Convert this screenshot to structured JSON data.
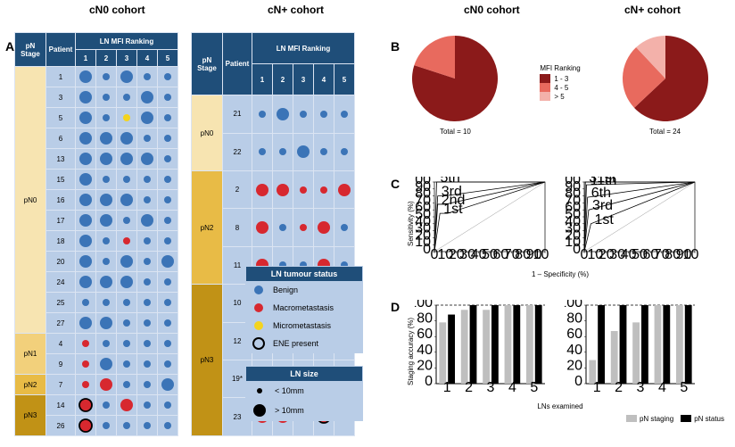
{
  "cohorts": {
    "left": "cN0 cohort",
    "mid": "cN+ cohort",
    "B_left": "cN0 cohort",
    "B_right": "cN+ cohort"
  },
  "panels": {
    "A": "A",
    "B": "B",
    "C": "C",
    "D": "D"
  },
  "tableHeaders": {
    "stage": "pN Stage",
    "patient": "Patient",
    "ranking": "LN MFI Ranking",
    "cols": [
      "1",
      "2",
      "3",
      "4",
      "5"
    ]
  },
  "colors": {
    "benign": "#3b74b7",
    "macro": "#d7282f",
    "micro": "#f4d41f",
    "ene_stroke": "#000000",
    "cell_bg": "#b9cde7",
    "header_bg": "#1f4e79",
    "stage_pN0": "#f7e4b1",
    "stage_pN1": "#f2d07b",
    "stage_pN2": "#e8bb46",
    "stage_pN3": "#c19216",
    "pie1": "#8b1a1a",
    "pie2": "#e86a5e",
    "pie3": "#f3b1aa",
    "barA": "#bfbfbf",
    "barB": "#000000",
    "text": "#000000"
  },
  "sizes": {
    "smallDot": 4,
    "bigDot": 7,
    "eneStroke": 1.8,
    "cellPx": 22
  },
  "cN0_table": [
    {
      "stage": "pN0",
      "patient": "1",
      "dots": [
        {
          "c": "b",
          "s": "L"
        },
        {
          "c": "b",
          "s": "S"
        },
        {
          "c": "b",
          "s": "L"
        },
        {
          "c": "b",
          "s": "S"
        },
        {
          "c": "b",
          "s": "S"
        }
      ]
    },
    {
      "stage": "pN0",
      "patient": "3",
      "dots": [
        {
          "c": "b",
          "s": "L"
        },
        {
          "c": "b",
          "s": "S"
        },
        {
          "c": "b",
          "s": "S"
        },
        {
          "c": "b",
          "s": "L"
        },
        {
          "c": "b",
          "s": "S"
        }
      ]
    },
    {
      "stage": "pN0",
      "patient": "5",
      "dots": [
        {
          "c": "b",
          "s": "L"
        },
        {
          "c": "b",
          "s": "S"
        },
        {
          "c": "y",
          "s": "S"
        },
        {
          "c": "b",
          "s": "L"
        },
        {
          "c": "b",
          "s": "S"
        }
      ]
    },
    {
      "stage": "pN0",
      "patient": "6",
      "dots": [
        {
          "c": "b",
          "s": "L"
        },
        {
          "c": "b",
          "s": "L"
        },
        {
          "c": "b",
          "s": "L"
        },
        {
          "c": "b",
          "s": "S"
        },
        {
          "c": "b",
          "s": "S"
        }
      ]
    },
    {
      "stage": "pN0",
      "patient": "13",
      "dots": [
        {
          "c": "b",
          "s": "L"
        },
        {
          "c": "b",
          "s": "L"
        },
        {
          "c": "b",
          "s": "L"
        },
        {
          "c": "b",
          "s": "L"
        },
        {
          "c": "b",
          "s": "S"
        }
      ]
    },
    {
      "stage": "pN0",
      "patient": "15",
      "dots": [
        {
          "c": "b",
          "s": "L"
        },
        {
          "c": "b",
          "s": "S"
        },
        {
          "c": "b",
          "s": "S"
        },
        {
          "c": "b",
          "s": "S"
        },
        {
          "c": "b",
          "s": "S"
        }
      ]
    },
    {
      "stage": "pN0",
      "patient": "16",
      "dots": [
        {
          "c": "b",
          "s": "L"
        },
        {
          "c": "b",
          "s": "L"
        },
        {
          "c": "b",
          "s": "L"
        },
        {
          "c": "b",
          "s": "S"
        },
        {
          "c": "b",
          "s": "S"
        }
      ]
    },
    {
      "stage": "pN0",
      "patient": "17",
      "dots": [
        {
          "c": "b",
          "s": "L"
        },
        {
          "c": "b",
          "s": "L"
        },
        {
          "c": "b",
          "s": "S"
        },
        {
          "c": "b",
          "s": "L"
        },
        {
          "c": "b",
          "s": "S"
        }
      ]
    },
    {
      "stage": "pN0",
      "patient": "18",
      "dots": [
        {
          "c": "b",
          "s": "L"
        },
        {
          "c": "b",
          "s": "S"
        },
        {
          "c": "r",
          "s": "S"
        },
        {
          "c": "b",
          "s": "S"
        },
        {
          "c": "b",
          "s": "S"
        }
      ]
    },
    {
      "stage": "pN0",
      "patient": "20",
      "dots": [
        {
          "c": "b",
          "s": "L"
        },
        {
          "c": "b",
          "s": "S"
        },
        {
          "c": "b",
          "s": "L"
        },
        {
          "c": "b",
          "s": "S"
        },
        {
          "c": "b",
          "s": "L"
        }
      ]
    },
    {
      "stage": "pN0",
      "patient": "24",
      "dots": [
        {
          "c": "b",
          "s": "L"
        },
        {
          "c": "b",
          "s": "L"
        },
        {
          "c": "b",
          "s": "L"
        },
        {
          "c": "b",
          "s": "S"
        },
        {
          "c": "b",
          "s": "S"
        }
      ]
    },
    {
      "stage": "pN0",
      "patient": "25",
      "dots": [
        {
          "c": "b",
          "s": "S"
        },
        {
          "c": "b",
          "s": "S"
        },
        {
          "c": "b",
          "s": "S"
        },
        {
          "c": "b",
          "s": "S"
        },
        {
          "c": "b",
          "s": "S"
        }
      ]
    },
    {
      "stage": "pN0",
      "patient": "27",
      "dots": [
        {
          "c": "b",
          "s": "L"
        },
        {
          "c": "b",
          "s": "L"
        },
        {
          "c": "b",
          "s": "S"
        },
        {
          "c": "b",
          "s": "S"
        },
        {
          "c": "b",
          "s": "S"
        }
      ]
    },
    {
      "stage": "pN1",
      "patient": "4",
      "dots": [
        {
          "c": "r",
          "s": "S"
        },
        {
          "c": "b",
          "s": "S"
        },
        {
          "c": "b",
          "s": "S"
        },
        {
          "c": "b",
          "s": "S"
        },
        {
          "c": "b",
          "s": "S"
        }
      ]
    },
    {
      "stage": "pN1",
      "patient": "9",
      "dots": [
        {
          "c": "r",
          "s": "S"
        },
        {
          "c": "b",
          "s": "L"
        },
        {
          "c": "b",
          "s": "S"
        },
        {
          "c": "b",
          "s": "S"
        },
        {
          "c": "b",
          "s": "S"
        }
      ]
    },
    {
      "stage": "pN2",
      "patient": "7",
      "dots": [
        {
          "c": "r",
          "s": "S"
        },
        {
          "c": "r",
          "s": "L"
        },
        {
          "c": "b",
          "s": "S"
        },
        {
          "c": "b",
          "s": "S"
        },
        {
          "c": "b",
          "s": "L"
        }
      ]
    },
    {
      "stage": "pN3",
      "patient": "14",
      "dots": [
        {
          "c": "r",
          "s": "L",
          "ene": true
        },
        {
          "c": "b",
          "s": "S"
        },
        {
          "c": "r",
          "s": "L"
        },
        {
          "c": "b",
          "s": "S"
        },
        {
          "c": "b",
          "s": "S"
        }
      ]
    },
    {
      "stage": "pN3",
      "patient": "26",
      "dots": [
        {
          "c": "r",
          "s": "L",
          "ene": true
        },
        {
          "c": "b",
          "s": "S"
        },
        {
          "c": "b",
          "s": "S"
        },
        {
          "c": "b",
          "s": "S"
        },
        {
          "c": "b",
          "s": "S"
        }
      ]
    }
  ],
  "cNplus_table": [
    {
      "stage": "pN0",
      "patient": "21",
      "dots": [
        {
          "c": "b",
          "s": "S"
        },
        {
          "c": "b",
          "s": "L"
        },
        {
          "c": "b",
          "s": "S"
        },
        {
          "c": "b",
          "s": "S"
        },
        {
          "c": "b",
          "s": "S"
        }
      ]
    },
    {
      "stage": "pN0",
      "patient": "22",
      "dots": [
        {
          "c": "b",
          "s": "S"
        },
        {
          "c": "b",
          "s": "S"
        },
        {
          "c": "b",
          "s": "L"
        },
        {
          "c": "b",
          "s": "S"
        },
        {
          "c": "b",
          "s": "S"
        }
      ]
    },
    {
      "stage": "pN2",
      "patient": "2",
      "dots": [
        {
          "c": "r",
          "s": "L"
        },
        {
          "c": "r",
          "s": "L"
        },
        {
          "c": "r",
          "s": "S"
        },
        {
          "c": "r",
          "s": "S"
        },
        {
          "c": "r",
          "s": "L"
        }
      ]
    },
    {
      "stage": "pN2",
      "patient": "8",
      "dots": [
        {
          "c": "r",
          "s": "L"
        },
        {
          "c": "b",
          "s": "S"
        },
        {
          "c": "r",
          "s": "S"
        },
        {
          "c": "r",
          "s": "L"
        },
        {
          "c": "b",
          "s": "S"
        }
      ]
    },
    {
      "stage": "pN2",
      "patient": "11",
      "dots": [
        {
          "c": "r",
          "s": "L"
        },
        {
          "c": "b",
          "s": "S"
        },
        {
          "c": "b",
          "s": "S"
        },
        {
          "c": "r",
          "s": "L"
        },
        {
          "c": "b",
          "s": "S"
        }
      ]
    },
    {
      "stage": "pN3",
      "patient": "10",
      "dots": [
        {
          "c": "r",
          "s": "L",
          "ene": true
        },
        {
          "c": "b",
          "s": "S"
        },
        {
          "c": "b",
          "s": "L"
        },
        {
          "c": "b",
          "s": "S"
        },
        {
          "c": "b",
          "s": "S"
        }
      ]
    },
    {
      "stage": "pN3",
      "patient": "12",
      "dots": [
        {
          "c": "r",
          "s": "L",
          "ene": true
        },
        {
          "c": "r",
          "s": "L",
          "ene": true
        },
        {
          "c": "r",
          "s": "L",
          "ene": true
        },
        {
          "c": "b",
          "s": "S"
        },
        {
          "c": "b",
          "s": "S"
        }
      ]
    },
    {
      "stage": "pN3",
      "patient": "19*",
      "dots": [
        {
          "c": "r",
          "s": "L",
          "ene": true
        },
        {
          "c": "r",
          "s": "L"
        },
        {
          "c": "b",
          "s": "S"
        },
        {
          "c": "r",
          "s": "S"
        },
        {
          "c": "r",
          "s": "S"
        }
      ]
    },
    {
      "stage": "pN3",
      "patient": "23",
      "dots": [
        {
          "c": "r",
          "s": "L"
        },
        {
          "c": "r",
          "s": "L"
        },
        {
          "c": "b",
          "s": "S"
        },
        {
          "c": "r",
          "s": "L",
          "ene": true
        },
        {
          "c": "b",
          "s": "S"
        }
      ]
    }
  ],
  "legendStatus": {
    "title": "LN tumour status",
    "items": [
      {
        "key": "Benign",
        "shape": "dot",
        "color": "benign"
      },
      {
        "key": "Macrometastasis",
        "shape": "dot",
        "color": "macro"
      },
      {
        "key": "Micrometastasis",
        "shape": "dot",
        "color": "micro"
      },
      {
        "key": "ENE present",
        "shape": "ring",
        "color": "ene_stroke"
      }
    ]
  },
  "legendSize": {
    "title": "LN size",
    "items": [
      {
        "key": "< 10mm",
        "r": 3
      },
      {
        "key": "> 10mm",
        "r": 7
      }
    ]
  },
  "panelB": {
    "legendTitle": "MFI Ranking",
    "legendItems": [
      {
        "label": "1 - 3",
        "color": "pie1"
      },
      {
        "label": "4 - 5",
        "color": "pie2"
      },
      {
        "label": "> 5",
        "color": "pie3"
      }
    ],
    "cN0": {
      "total": "Total = 10",
      "slices": [
        {
          "v": 80,
          "c": "pie1"
        },
        {
          "v": 20,
          "c": "pie2"
        }
      ],
      "startAngle": -90
    },
    "cNp": {
      "total": "Total = 24",
      "slices": [
        {
          "v": 63,
          "c": "pie1"
        },
        {
          "v": 25,
          "c": "pie2"
        },
        {
          "v": 12,
          "c": "pie3"
        }
      ],
      "startAngle": -90
    }
  },
  "panelC": {
    "ylabel": "Sensitivity (%)",
    "xlabel": "1 – Specificity (%)",
    "ticks": [
      0,
      10,
      20,
      30,
      40,
      50,
      60,
      70,
      80,
      90,
      100
    ],
    "cN0": {
      "curves": [
        {
          "label": "1st",
          "pts": [
            [
              0,
              0
            ],
            [
              5,
              55
            ],
            [
              12,
              55
            ],
            [
              100,
              100
            ]
          ]
        },
        {
          "label": "2nd",
          "pts": [
            [
              0,
              0
            ],
            [
              3,
              68
            ],
            [
              10,
              68
            ],
            [
              100,
              100
            ]
          ]
        },
        {
          "label": "3rd",
          "pts": [
            [
              0,
              0
            ],
            [
              3,
              80
            ],
            [
              9,
              80
            ],
            [
              100,
              100
            ]
          ]
        },
        {
          "label": "5th",
          "pts": [
            [
              0,
              0
            ],
            [
              2,
              100
            ],
            [
              100,
              100
            ]
          ]
        }
      ]
    },
    "cNp": {
      "curves": [
        {
          "label": "1st",
          "pts": [
            [
              0,
              0
            ],
            [
              6,
              40
            ],
            [
              100,
              100
            ]
          ]
        },
        {
          "label": "3rd",
          "pts": [
            [
              0,
              0
            ],
            [
              4,
              60
            ],
            [
              100,
              100
            ]
          ]
        },
        {
          "label": "6th",
          "pts": [
            [
              0,
              0
            ],
            [
              3,
              78
            ],
            [
              100,
              100
            ]
          ]
        },
        {
          "label": "11th",
          "pts": [
            [
              0,
              0
            ],
            [
              2,
              96
            ],
            [
              100,
              100
            ]
          ]
        },
        {
          "label": "31st",
          "pts": [
            [
              0,
              0
            ],
            [
              1,
              100
            ],
            [
              100,
              100
            ]
          ]
        }
      ]
    }
  },
  "panelD": {
    "ylabel": "Staging accuracy (%)",
    "xlabel": "LNs examined",
    "xCats": [
      "1",
      "2",
      "3",
      "4",
      "5"
    ],
    "ymax": 100,
    "ytick": 20,
    "legend": [
      {
        "label": "pN staging",
        "c": "barA"
      },
      {
        "label": "pN status",
        "c": "barB"
      }
    ],
    "cN0": [
      [
        78,
        88
      ],
      [
        94,
        100
      ],
      [
        94,
        100
      ],
      [
        100,
        100
      ],
      [
        100,
        100
      ]
    ],
    "cNp": [
      [
        30,
        100
      ],
      [
        67,
        100
      ],
      [
        78,
        100
      ],
      [
        100,
        100
      ],
      [
        100,
        100
      ]
    ]
  }
}
